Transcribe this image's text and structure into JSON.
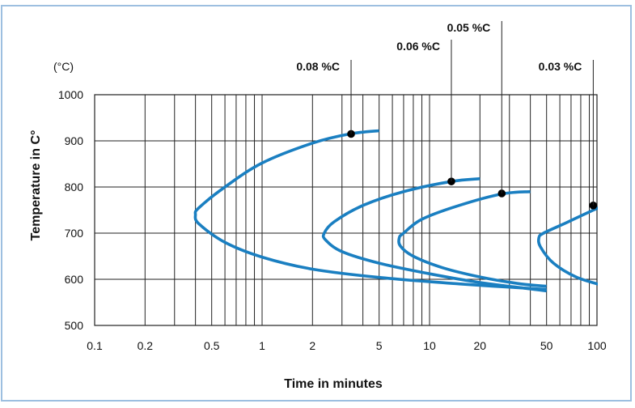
{
  "chart_data": {
    "type": "line",
    "title": "",
    "xlabel": "Time in minutes",
    "ylabel": "Temperature in C°",
    "y_unit": "(°C)",
    "x_scale": "log",
    "xlim": [
      0.1,
      100
    ],
    "ylim": [
      500,
      1000
    ],
    "x_ticks": [
      0.1,
      0.2,
      0.5,
      1,
      2,
      5,
      10,
      20,
      50,
      100
    ],
    "x_tick_labels": [
      "0.1",
      "0.2",
      "0.5",
      "1",
      "2",
      "5",
      "10",
      "20",
      "50",
      "100"
    ],
    "y_ticks": [
      500,
      600,
      700,
      800,
      900,
      1000
    ],
    "y_tick_labels": [
      "500",
      "600",
      "700",
      "800",
      "900",
      "1000"
    ],
    "grid": true,
    "line_color": "#1a7fc1",
    "series": [
      {
        "name": "0.08 %C",
        "x": [
          5,
          3.33,
          2,
          1,
          0.6,
          0.42,
          0.4,
          0.42,
          0.6,
          1,
          2,
          5,
          15,
          50
        ],
        "y": [
          922,
          915,
          895,
          852,
          800,
          755,
          740,
          720,
          680,
          648,
          622,
          604,
          590,
          578
        ],
        "marker": {
          "x": 3.4,
          "y": 915
        }
      },
      {
        "name": "0.06 %C",
        "x": [
          20,
          13.5,
          7,
          4,
          2.7,
          2.35,
          2.4,
          3,
          5,
          10,
          20,
          50
        ],
        "y": [
          818,
          812,
          790,
          760,
          725,
          700,
          685,
          660,
          635,
          612,
          593,
          575
        ],
        "marker": {
          "x": 13.5,
          "y": 812
        }
      },
      {
        "name": "0.05 %C",
        "x": [
          40,
          27,
          15,
          9,
          7,
          6.6,
          6.7,
          8,
          12,
          20,
          35,
          50
        ],
        "y": [
          790,
          785,
          760,
          730,
          700,
          690,
          672,
          650,
          625,
          605,
          590,
          585
        ],
        "marker": {
          "x": 27,
          "y": 786
        }
      },
      {
        "name": "0.03 %C",
        "x": [
          105,
          95,
          65,
          48,
          45,
          46,
          55,
          75,
          105
        ],
        "y": [
          757,
          750,
          722,
          700,
          690,
          670,
          635,
          605,
          588
        ],
        "marker": {
          "x": 95,
          "y": 760
        }
      }
    ],
    "annotations": [
      {
        "text": "0.08 %C",
        "x": 3.4
      },
      {
        "text": "0.06 %C",
        "x": 13.5
      },
      {
        "text": "0.05 %C",
        "x": 27
      },
      {
        "text": "0.03 %C",
        "x": 95
      }
    ]
  }
}
